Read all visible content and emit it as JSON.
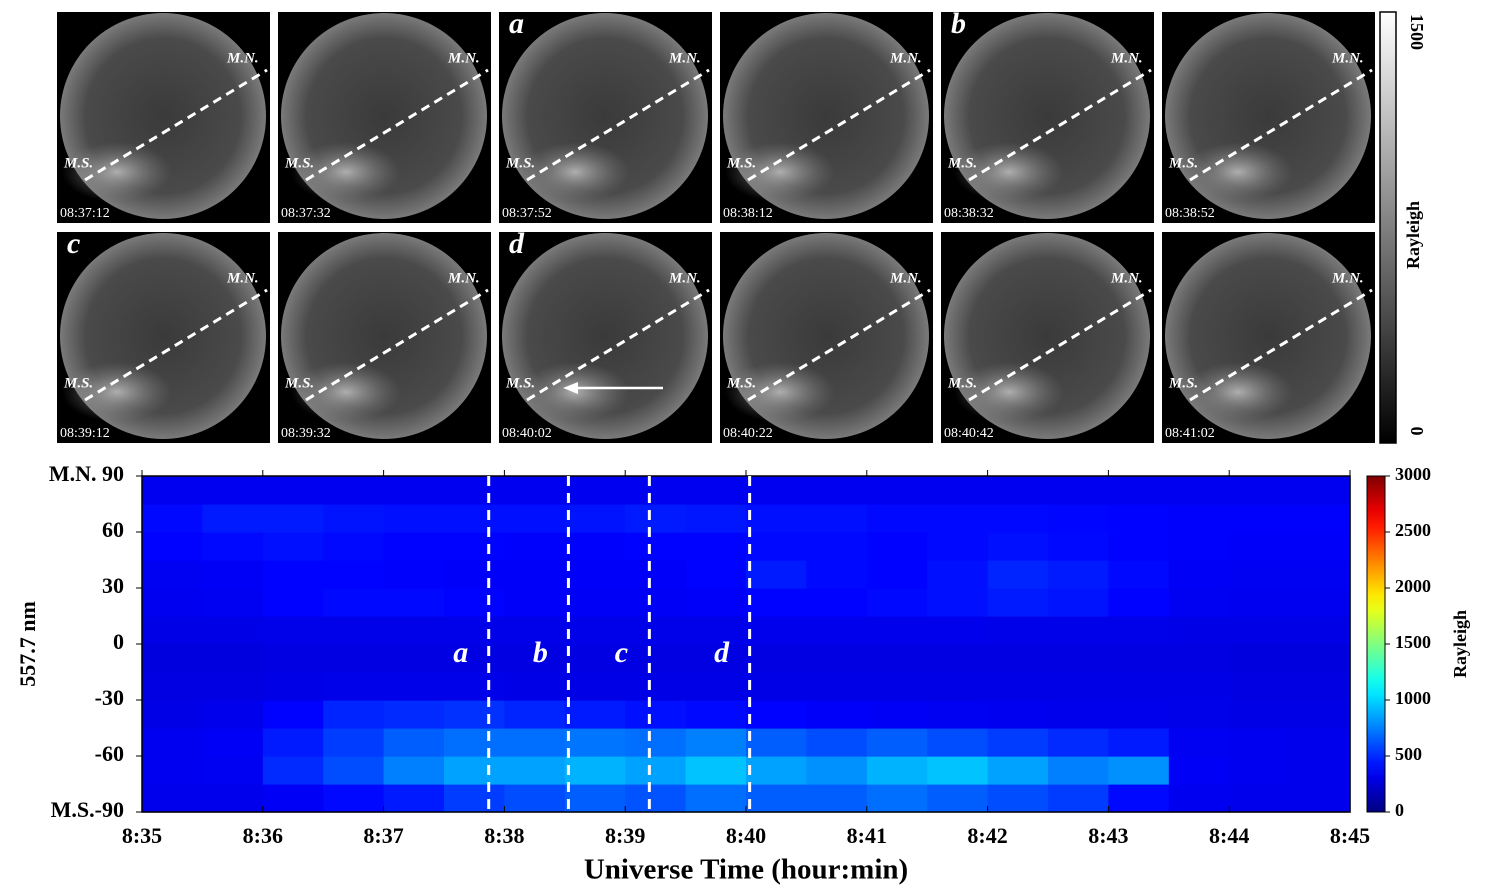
{
  "chart_data": [
    {
      "type": "image-grid",
      "north_label": "M.N.",
      "south_label": "M.S.",
      "panels": [
        {
          "time": "08:37:12"
        },
        {
          "time": "08:37:32"
        },
        {
          "time": "08:37:52",
          "letter": "a"
        },
        {
          "time": "08:38:12"
        },
        {
          "time": "08:38:32",
          "letter": "b"
        },
        {
          "time": "08:38:52"
        },
        {
          "time": "08:39:12",
          "letter": "c"
        },
        {
          "time": "08:39:32"
        },
        {
          "time": "08:40:02",
          "letter": "d"
        },
        {
          "time": "08:40:22"
        },
        {
          "time": "08:40:42"
        },
        {
          "time": "08:41:02"
        }
      ],
      "colorbar_label": "Rayleigh",
      "clim": [
        0,
        1500
      ],
      "cticks": [
        0,
        1500
      ]
    },
    {
      "type": "heatmap",
      "ylabel": "557.7 nm",
      "xlabel": "Universe Time (hour:min)",
      "colorbar_label": "Rayleigh",
      "colormap": "jet",
      "clim": [
        0,
        3000
      ],
      "cticks": [
        0,
        500,
        1000,
        1500,
        2000,
        2500,
        3000
      ],
      "xlim": [
        515,
        525
      ],
      "xticks": [
        {
          "value": 515,
          "label": "8:35"
        },
        {
          "value": 516,
          "label": "8:36"
        },
        {
          "value": 517,
          "label": "8:37"
        },
        {
          "value": 518,
          "label": "8:38"
        },
        {
          "value": 519,
          "label": "8:39"
        },
        {
          "value": 520,
          "label": "8:40"
        },
        {
          "value": 521,
          "label": "8:41"
        },
        {
          "value": 522,
          "label": "8:42"
        },
        {
          "value": 523,
          "label": "8:43"
        },
        {
          "value": 524,
          "label": "8:44"
        },
        {
          "value": 525,
          "label": "8:45"
        }
      ],
      "ylim": [
        -90,
        90
      ],
      "yticks": [
        {
          "value": -90,
          "label": "M.S.-90"
        },
        -60,
        -30,
        0,
        30,
        60,
        {
          "value": 90,
          "label": "M.N. 90"
        }
      ],
      "x_bins": [
        515,
        515.5,
        516,
        516.5,
        517,
        517.5,
        518,
        518.5,
        519,
        519.5,
        520,
        520.5,
        521,
        521.5,
        522,
        522.5,
        523,
        523.5,
        524,
        524.5,
        525
      ],
      "y_bins": [
        -90,
        -75,
        -60,
        -45,
        -30,
        -15,
        0,
        15,
        30,
        45,
        60,
        75,
        90
      ],
      "values": [
        [
          320,
          320,
          350,
          400,
          450,
          550,
          600,
          650,
          620,
          700,
          650,
          650,
          700,
          650,
          600,
          550,
          400,
          330,
          320,
          320
        ],
        [
          330,
          340,
          500,
          600,
          750,
          850,
          850,
          900,
          850,
          950,
          850,
          800,
          900,
          950,
          850,
          750,
          800,
          350,
          330,
          320
        ],
        [
          330,
          350,
          450,
          550,
          650,
          700,
          700,
          720,
          700,
          750,
          650,
          600,
          650,
          600,
          550,
          500,
          450,
          340,
          330,
          320
        ],
        [
          300,
          320,
          380,
          480,
          500,
          520,
          480,
          450,
          420,
          400,
          380,
          360,
          350,
          340,
          330,
          320,
          320,
          310,
          300,
          300
        ],
        [
          290,
          290,
          300,
          310,
          310,
          310,
          300,
          300,
          300,
          300,
          300,
          300,
          300,
          300,
          300,
          300,
          300,
          300,
          290,
          290
        ],
        [
          280,
          280,
          290,
          290,
          290,
          290,
          290,
          290,
          290,
          290,
          290,
          290,
          290,
          290,
          290,
          290,
          290,
          290,
          280,
          280
        ],
        [
          300,
          300,
          310,
          310,
          310,
          310,
          310,
          310,
          310,
          310,
          320,
          320,
          320,
          320,
          310,
          310,
          310,
          300,
          300,
          300
        ],
        [
          330,
          340,
          380,
          400,
          400,
          380,
          360,
          350,
          350,
          360,
          380,
          380,
          400,
          420,
          450,
          430,
          380,
          340,
          330,
          330
        ],
        [
          340,
          350,
          380,
          380,
          370,
          360,
          360,
          360,
          360,
          380,
          450,
          400,
          380,
          420,
          480,
          450,
          400,
          350,
          340,
          340
        ],
        [
          380,
          400,
          420,
          400,
          380,
          380,
          370,
          370,
          380,
          380,
          400,
          400,
          380,
          400,
          420,
          400,
          380,
          370,
          360,
          360
        ],
        [
          400,
          450,
          450,
          430,
          420,
          420,
          420,
          430,
          450,
          440,
          420,
          420,
          400,
          400,
          400,
          390,
          380,
          370,
          370,
          370
        ],
        [
          330,
          330,
          330,
          330,
          330,
          330,
          330,
          330,
          330,
          330,
          330,
          330,
          330,
          330,
          330,
          330,
          330,
          330,
          330,
          330
        ]
      ],
      "markers": [
        {
          "x": 517.87,
          "label": "a"
        },
        {
          "x": 518.53,
          "label": "b"
        },
        {
          "x": 519.2,
          "label": "c"
        },
        {
          "x": 520.03,
          "label": "d"
        }
      ]
    }
  ]
}
